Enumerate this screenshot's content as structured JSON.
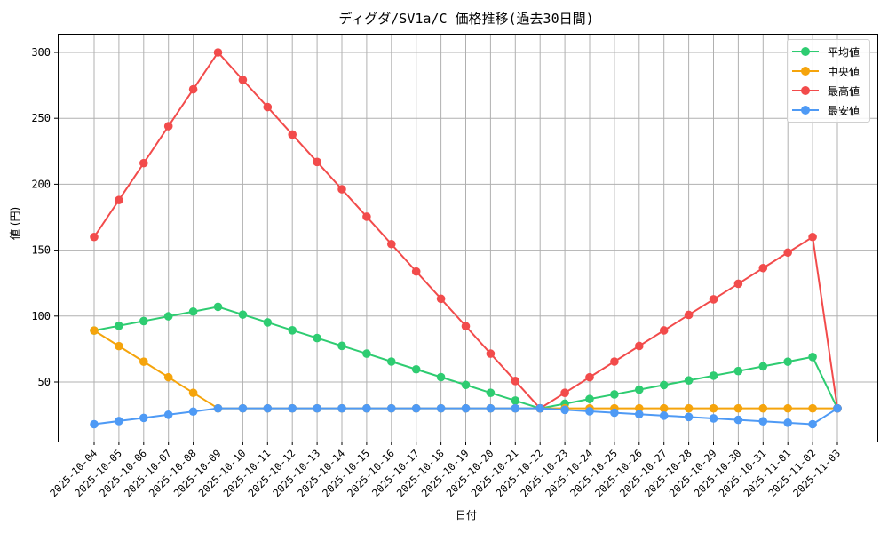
{
  "chart_data": {
    "type": "line",
    "title": "ディグダ/SV1a/C 価格推移(過去30日間)",
    "xlabel": "日付",
    "ylabel": "値 (円)",
    "ylim": [
      10,
      314
    ],
    "yticks": [
      50,
      100,
      150,
      200,
      250,
      300
    ],
    "grid": true,
    "legend_position": "upper right",
    "x": [
      "2025-10-04",
      "2025-10-05",
      "2025-10-06",
      "2025-10-07",
      "2025-10-08",
      "2025-10-09",
      "2025-10-10",
      "2025-10-11",
      "2025-10-12",
      "2025-10-13",
      "2025-10-14",
      "2025-10-15",
      "2025-10-16",
      "2025-10-17",
      "2025-10-18",
      "2025-10-19",
      "2025-10-20",
      "2025-10-21",
      "2025-10-22",
      "2025-10-23",
      "2025-10-24",
      "2025-10-25",
      "2025-10-26",
      "2025-10-27",
      "2025-10-28",
      "2025-10-29",
      "2025-10-30",
      "2025-10-31",
      "2025-11-01",
      "2025-11-02",
      "2025-11-03"
    ],
    "series": [
      {
        "name": "平均値",
        "color": "#2ecc71",
        "values": [
          89,
          92.6,
          96.2,
          99.8,
          103.4,
          107,
          101.1,
          95.2,
          89.2,
          83.3,
          77.4,
          71.5,
          65.5,
          59.6,
          53.7,
          47.8,
          41.8,
          35.9,
          30,
          33.5,
          37.1,
          40.6,
          44.2,
          47.7,
          51.2,
          54.8,
          58.3,
          61.9,
          65.4,
          69,
          30
        ]
      },
      {
        "name": "中央値",
        "color": "#f5a40c",
        "values": [
          89,
          77.2,
          65.4,
          53.6,
          41.8,
          30,
          30,
          30,
          30,
          30,
          30,
          30,
          30,
          30,
          30,
          30,
          30,
          30,
          30,
          30,
          30,
          30,
          30,
          30,
          30,
          30,
          30,
          30,
          30,
          30,
          30
        ]
      },
      {
        "name": "最高値",
        "color": "#f24b4b",
        "values": [
          160,
          188,
          216,
          244,
          272,
          300,
          279.2,
          258.5,
          237.7,
          216.9,
          196.2,
          175.4,
          154.6,
          133.8,
          113.1,
          92.3,
          71.5,
          50.8,
          30,
          41.8,
          53.6,
          65.5,
          77.3,
          89.1,
          100.9,
          112.7,
          124.5,
          136.4,
          148.2,
          160,
          30
        ]
      },
      {
        "name": "最安値",
        "color": "#4e9af5",
        "values": [
          18,
          20.4,
          22.8,
          25.2,
          27.6,
          30,
          30,
          30,
          30,
          30,
          30,
          30,
          30,
          30,
          30,
          30,
          30,
          30,
          30,
          28.9,
          27.8,
          26.7,
          25.6,
          24.5,
          23.5,
          22.4,
          21.3,
          20.2,
          19.1,
          18,
          30
        ]
      }
    ]
  }
}
